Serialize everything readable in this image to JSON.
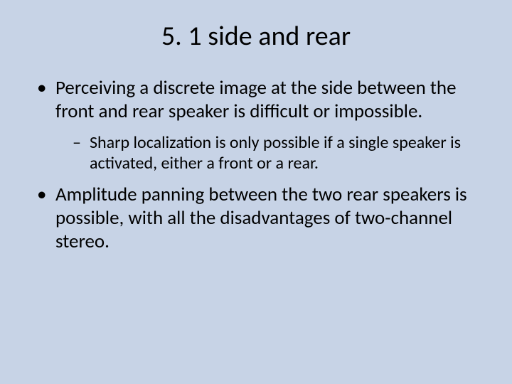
{
  "slide": {
    "background_color": "#c7d3e6",
    "text_color": "#000000",
    "font_family": "Calibri",
    "title": "5. 1 side and rear",
    "title_fontsize": 38,
    "body_fontsize_level1": 27,
    "body_fontsize_level2": 24,
    "bullets": [
      {
        "text": "Perceiving a discrete image at the side between the front and rear speaker is difficult or impossible.",
        "children": [
          {
            "text": "Sharp localization is only possible if a single speaker is activated, either a front or a rear."
          }
        ]
      },
      {
        "text": "Amplitude panning between the two rear speakers is possible, with all the disadvantages of two-channel stereo.",
        "children": []
      }
    ]
  }
}
